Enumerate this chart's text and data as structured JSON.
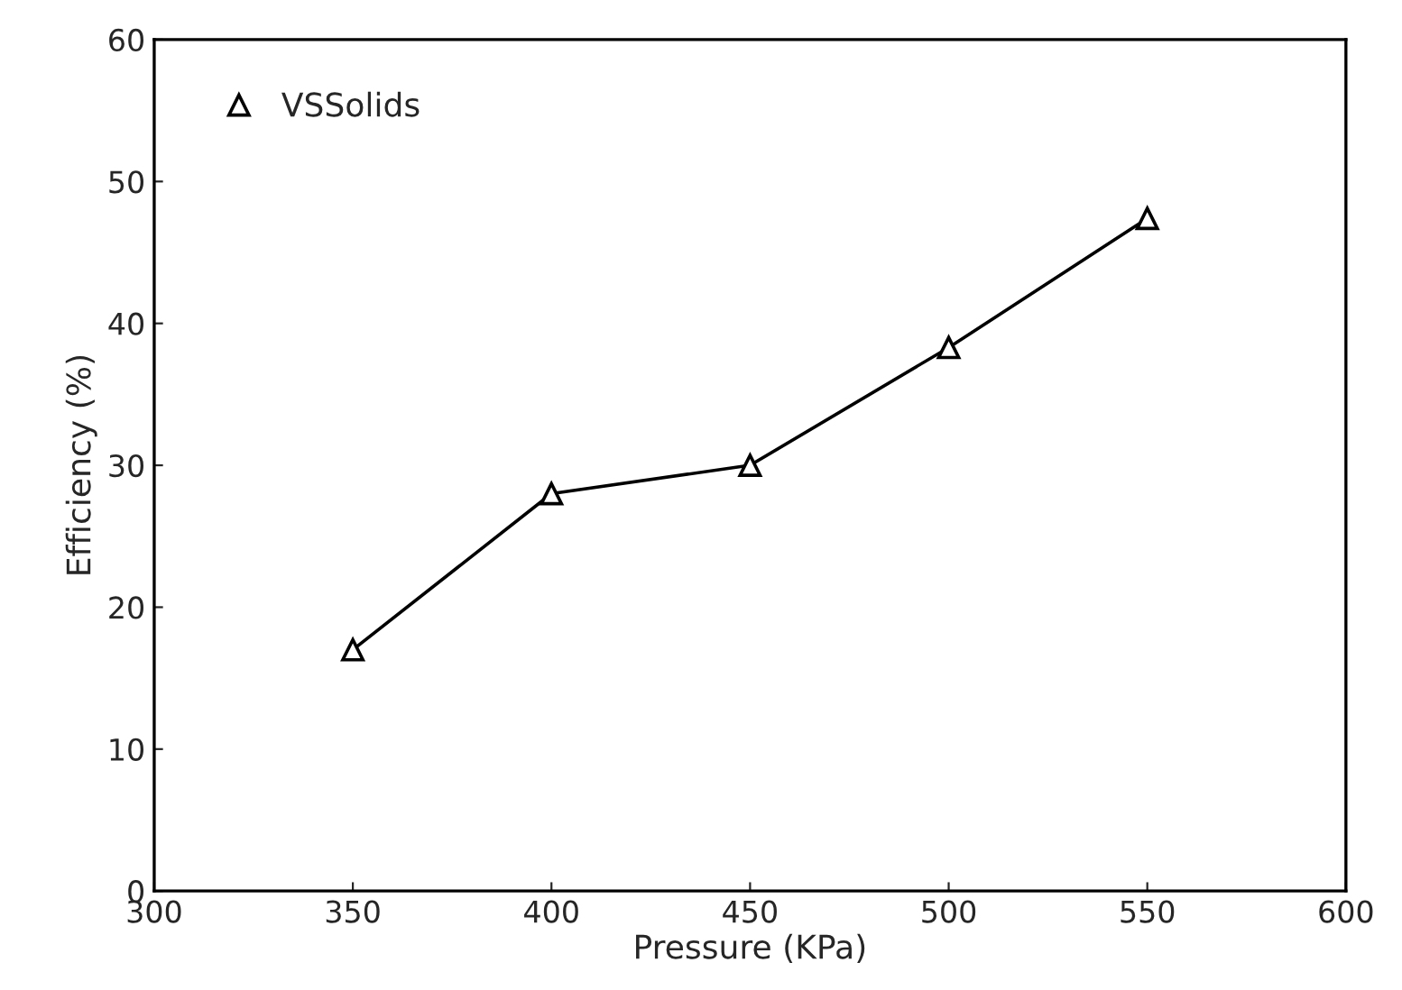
{
  "chart_data": {
    "type": "line",
    "xlabel": "Pressure (KPa)",
    "ylabel": "Efficiency (%)",
    "x": [
      350,
      400,
      450,
      500,
      550
    ],
    "series": [
      {
        "name": "VSSolids",
        "color": "#000000",
        "values": [
          17,
          28,
          30,
          38.3,
          47.4
        ]
      }
    ],
    "xlim": [
      300,
      600
    ],
    "xticks": [
      300,
      350,
      400,
      450,
      500,
      550,
      600
    ],
    "ylim": [
      0,
      60
    ],
    "yticks": [
      0,
      10,
      20,
      30,
      40,
      50,
      60
    ],
    "marker": "triangle",
    "line_style": "solid",
    "legend": "top left",
    "grid": false
  }
}
